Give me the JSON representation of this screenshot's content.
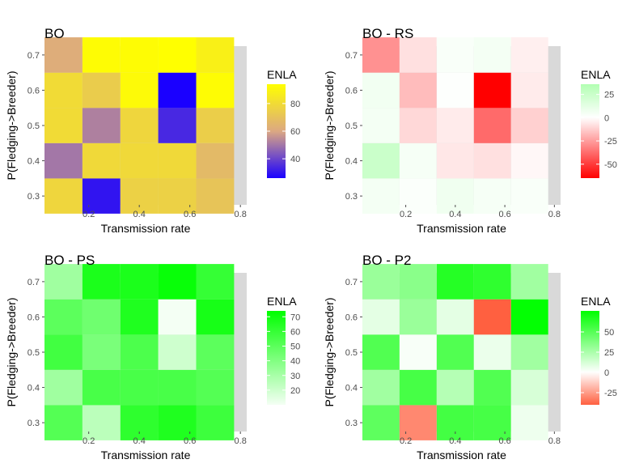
{
  "chart_data": [
    {
      "type": "heatmap",
      "title": "BO",
      "xlabel": "Transmission rate",
      "ylabel": "P(Fledging->Breeder)",
      "x": [
        0.1,
        0.25,
        0.4,
        0.55,
        0.7
      ],
      "y": [
        0.3,
        0.4,
        0.5,
        0.6,
        0.7
      ],
      "xticks": [
        "0.2",
        "0.4",
        "0.6",
        "0.8"
      ],
      "yticks": [
        "0.3",
        "0.4",
        "0.5",
        "0.6",
        "0.7"
      ],
      "values": [
        [
          78,
          30,
          76,
          76,
          71
        ],
        [
          50,
          79,
          79,
          79,
          67
        ],
        [
          80,
          52,
          78,
          34,
          75
        ],
        [
          80,
          74,
          92,
          26,
          93
        ],
        [
          62,
          93,
          93,
          94,
          88
        ]
      ],
      "legend": {
        "title": "ENLA",
        "ticks": [
          40,
          60,
          80
        ],
        "min": 26,
        "max": 94
      },
      "colors": {
        "low": "#1a00ff",
        "mid": "#dca882",
        "high": "#ffff00"
      }
    },
    {
      "type": "heatmap",
      "title": "BO - RS",
      "xlabel": "Transmission rate",
      "ylabel": "P(Fledging->Breeder)",
      "x": [
        0.1,
        0.25,
        0.4,
        0.55,
        0.7
      ],
      "y": [
        0.3,
        0.4,
        0.5,
        0.6,
        0.7
      ],
      "xticks": [
        "0.2",
        "0.4",
        "0.6",
        "0.8"
      ],
      "yticks": [
        "0.3",
        "0.4",
        "0.5",
        "0.6",
        "0.7"
      ],
      "values": [
        [
          5,
          2,
          7,
          4,
          3
        ],
        [
          25,
          4,
          -6,
          -8,
          -2
        ],
        [
          5,
          -10,
          -5,
          -38,
          -12
        ],
        [
          6,
          -17,
          1,
          -65,
          -5
        ],
        [
          -28,
          -8,
          3,
          5,
          -4
        ]
      ],
      "legend": {
        "title": "ENLA",
        "ticks": [
          25,
          0,
          -25,
          -50
        ],
        "min": -65,
        "max": 36
      },
      "colors": {
        "low": "#ff0000",
        "mid": "#ffffff",
        "high": "#b2ffb2"
      }
    },
    {
      "type": "heatmap",
      "title": "BO - PS",
      "xlabel": "Transmission rate",
      "ylabel": "P(Fledging->Breeder)",
      "x": [
        0.1,
        0.25,
        0.4,
        0.55,
        0.7
      ],
      "y": [
        0.3,
        0.4,
        0.5,
        0.6,
        0.7
      ],
      "xticks": [
        "0.2",
        "0.4",
        "0.6",
        "0.8"
      ],
      "yticks": [
        "0.3",
        "0.4",
        "0.5",
        "0.6",
        "0.7"
      ],
      "values": [
        [
          52,
          25,
          62,
          66,
          58
        ],
        [
          32,
          55,
          55,
          55,
          52
        ],
        [
          57,
          42,
          54,
          20,
          50
        ],
        [
          50,
          45,
          66,
          8,
          68
        ],
        [
          32,
          67,
          67,
          72,
          60
        ]
      ],
      "legend": {
        "title": "ENLA",
        "ticks": [
          70,
          60,
          50,
          40,
          30,
          20
        ],
        "min": 10,
        "max": 74
      },
      "colors": {
        "low": "#f4fff4",
        "high": "#00ff00"
      }
    },
    {
      "type": "heatmap",
      "title": "BO - P2",
      "xlabel": "Transmission rate",
      "ylabel": "P(Fledging->Breeder)",
      "x": [
        0.1,
        0.25,
        0.4,
        0.55,
        0.7
      ],
      "y": [
        0.3,
        0.4,
        0.5,
        0.6,
        0.7
      ],
      "xticks": [
        "0.2",
        "0.4",
        "0.6",
        "0.8"
      ],
      "yticks": [
        "0.3",
        "0.4",
        "0.5",
        "0.6",
        "0.7"
      ],
      "values": [
        [
          48,
          -30,
          56,
          55,
          5
        ],
        [
          28,
          55,
          22,
          52,
          12
        ],
        [
          52,
          2,
          52,
          6,
          28
        ],
        [
          8,
          30,
          8,
          -40,
          75
        ],
        [
          30,
          35,
          65,
          62,
          28
        ]
      ],
      "legend": {
        "title": "ENLA",
        "ticks": [
          50,
          25,
          0,
          -25
        ],
        "min": -40,
        "max": 76
      },
      "colors": {
        "low": "#ff6040",
        "mid": "#ffffff",
        "high": "#00ff00"
      }
    }
  ]
}
